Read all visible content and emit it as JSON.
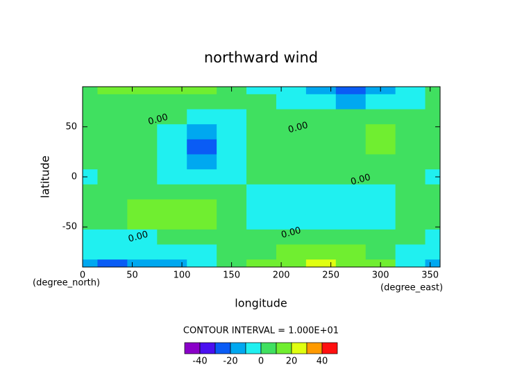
{
  "chart_data": {
    "type": "contour",
    "title": "northward wind",
    "xlabel": "longitude",
    "ylabel": "latitude",
    "xunit": "(degree_east)",
    "yunit": "(degree_north)",
    "contour_interval": "CONTOUR INTERVAL = 1.000E+01",
    "xlim": [
      0,
      360
    ],
    "ylim": [
      -90,
      90
    ],
    "xticks": [
      0,
      50,
      100,
      150,
      200,
      250,
      300,
      350
    ],
    "yticks": [
      -50,
      0,
      50
    ],
    "x": [
      0,
      30,
      60,
      90,
      120,
      150,
      180,
      210,
      240,
      270,
      300,
      330,
      360
    ],
    "y": [
      90,
      75,
      60,
      45,
      30,
      15,
      0,
      -15,
      -30,
      -45,
      -60,
      -75,
      -90
    ],
    "z": [
      [
        5,
        12,
        15,
        15,
        13,
        5,
        -2,
        -5,
        -15,
        -25,
        -15,
        -5,
        5
      ],
      [
        3,
        8,
        8,
        6,
        3,
        2,
        0,
        -2,
        -8,
        -12,
        -8,
        -3,
        3
      ],
      [
        2,
        8,
        3,
        0,
        -5,
        -3,
        2,
        3,
        2,
        0,
        0,
        1,
        2
      ],
      [
        2,
        5,
        2,
        -5,
        -15,
        -5,
        2,
        3,
        5,
        8,
        12,
        3,
        2
      ],
      [
        1,
        2,
        0,
        -8,
        -22,
        -8,
        0,
        3,
        5,
        8,
        12,
        3,
        1
      ],
      [
        0,
        1,
        0,
        -5,
        -12,
        -5,
        0,
        2,
        3,
        5,
        5,
        2,
        0
      ],
      [
        -1,
        0,
        1,
        -2,
        -3,
        -2,
        0,
        1,
        2,
        1,
        1,
        0,
        -1
      ],
      [
        1,
        2,
        5,
        3,
        2,
        1,
        -1,
        -1,
        -2,
        -1,
        -1,
        0,
        1
      ],
      [
        2,
        5,
        12,
        18,
        12,
        3,
        -1,
        -2,
        -2,
        -2,
        -1,
        0,
        2
      ],
      [
        1,
        3,
        10,
        15,
        10,
        2,
        -1,
        -2,
        -2,
        -1,
        -1,
        0,
        1
      ],
      [
        -2,
        -2,
        -2,
        0,
        2,
        1,
        3,
        3,
        2,
        2,
        2,
        0,
        -2
      ],
      [
        -8,
        -10,
        -10,
        -8,
        -5,
        0,
        8,
        12,
        14,
        12,
        5,
        -3,
        -8
      ],
      [
        -15,
        -25,
        -15,
        -12,
        -10,
        0,
        12,
        18,
        22,
        18,
        10,
        -5,
        -15
      ]
    ],
    "levels": [
      -50,
      -40,
      -30,
      -20,
      -10,
      0,
      10,
      20,
      30,
      40,
      50
    ],
    "colors": [
      "#8a00c8",
      "#4a10f0",
      "#0a5cf5",
      "#00a8f0",
      "#20f0f0",
      "#40e060",
      "#70ee30",
      "#e0ff10",
      "#ff9a00",
      "#ff1010",
      "#ffa0a0"
    ],
    "colorbar_ticks": [
      -40,
      -20,
      0,
      20,
      40
    ],
    "contour_labels": [
      {
        "text": "0.00",
        "x": 76,
        "y": 57
      },
      {
        "text": "0.00",
        "x": 217,
        "y": 49
      },
      {
        "text": "0.00",
        "x": 280,
        "y": -3
      },
      {
        "text": "0.00",
        "x": 210,
        "y": -56
      },
      {
        "text": "0.00",
        "x": 56,
        "y": -60
      }
    ]
  }
}
